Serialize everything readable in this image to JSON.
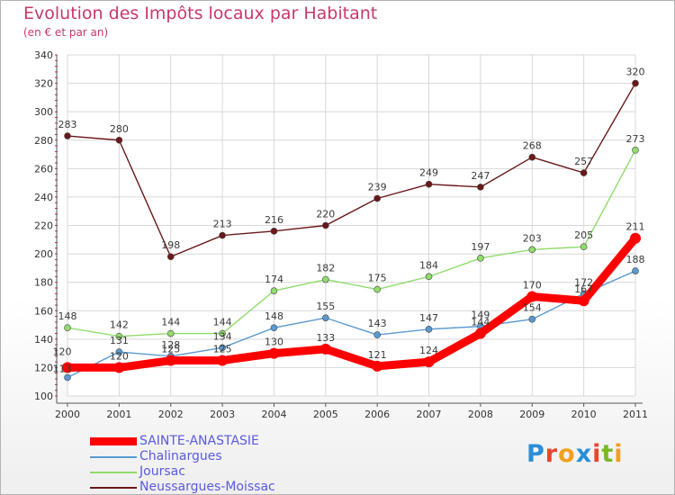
{
  "header": {
    "title": "Evolution des Impôts locaux par Habitant",
    "subtitle": "(en € et par an)"
  },
  "logo": {
    "text": "Proxiti",
    "colors": [
      "#2a8fd8",
      "#e8462a",
      "#f0a020",
      "#2a8fd8",
      "#e8462a",
      "#7ab828",
      "#f0a020"
    ]
  },
  "chart_data": {
    "type": "line",
    "x": [
      "2000",
      "2001",
      "2002",
      "2003",
      "2004",
      "2005",
      "2006",
      "2007",
      "2008",
      "2009",
      "2010",
      "2011"
    ],
    "ylim": [
      100,
      340
    ],
    "yticks": [
      100,
      120,
      140,
      160,
      180,
      200,
      220,
      240,
      260,
      280,
      300,
      320,
      340
    ],
    "grid": true,
    "legend_position": "bottom-left",
    "series": [
      {
        "name": "SAINTE-ANASTASIE",
        "color": "#ff0000",
        "values": [
          120,
          120,
          125,
          125,
          130,
          133,
          121,
          124,
          144,
          170,
          167,
          211
        ]
      },
      {
        "name": "Chalinargues",
        "color": "#5a9ad0",
        "values": [
          113,
          131,
          128,
          134,
          148,
          155,
          143,
          147,
          149,
          154,
          172,
          188
        ]
      },
      {
        "name": "Joursac",
        "color": "#90dc6c",
        "values": [
          148,
          142,
          144,
          144,
          174,
          182,
          175,
          184,
          197,
          203,
          205,
          273
        ]
      },
      {
        "name": "Neussargues-Moissac",
        "color": "#6a1818",
        "values": [
          283,
          280,
          198,
          213,
          216,
          220,
          239,
          249,
          247,
          268,
          257,
          320
        ]
      }
    ]
  }
}
